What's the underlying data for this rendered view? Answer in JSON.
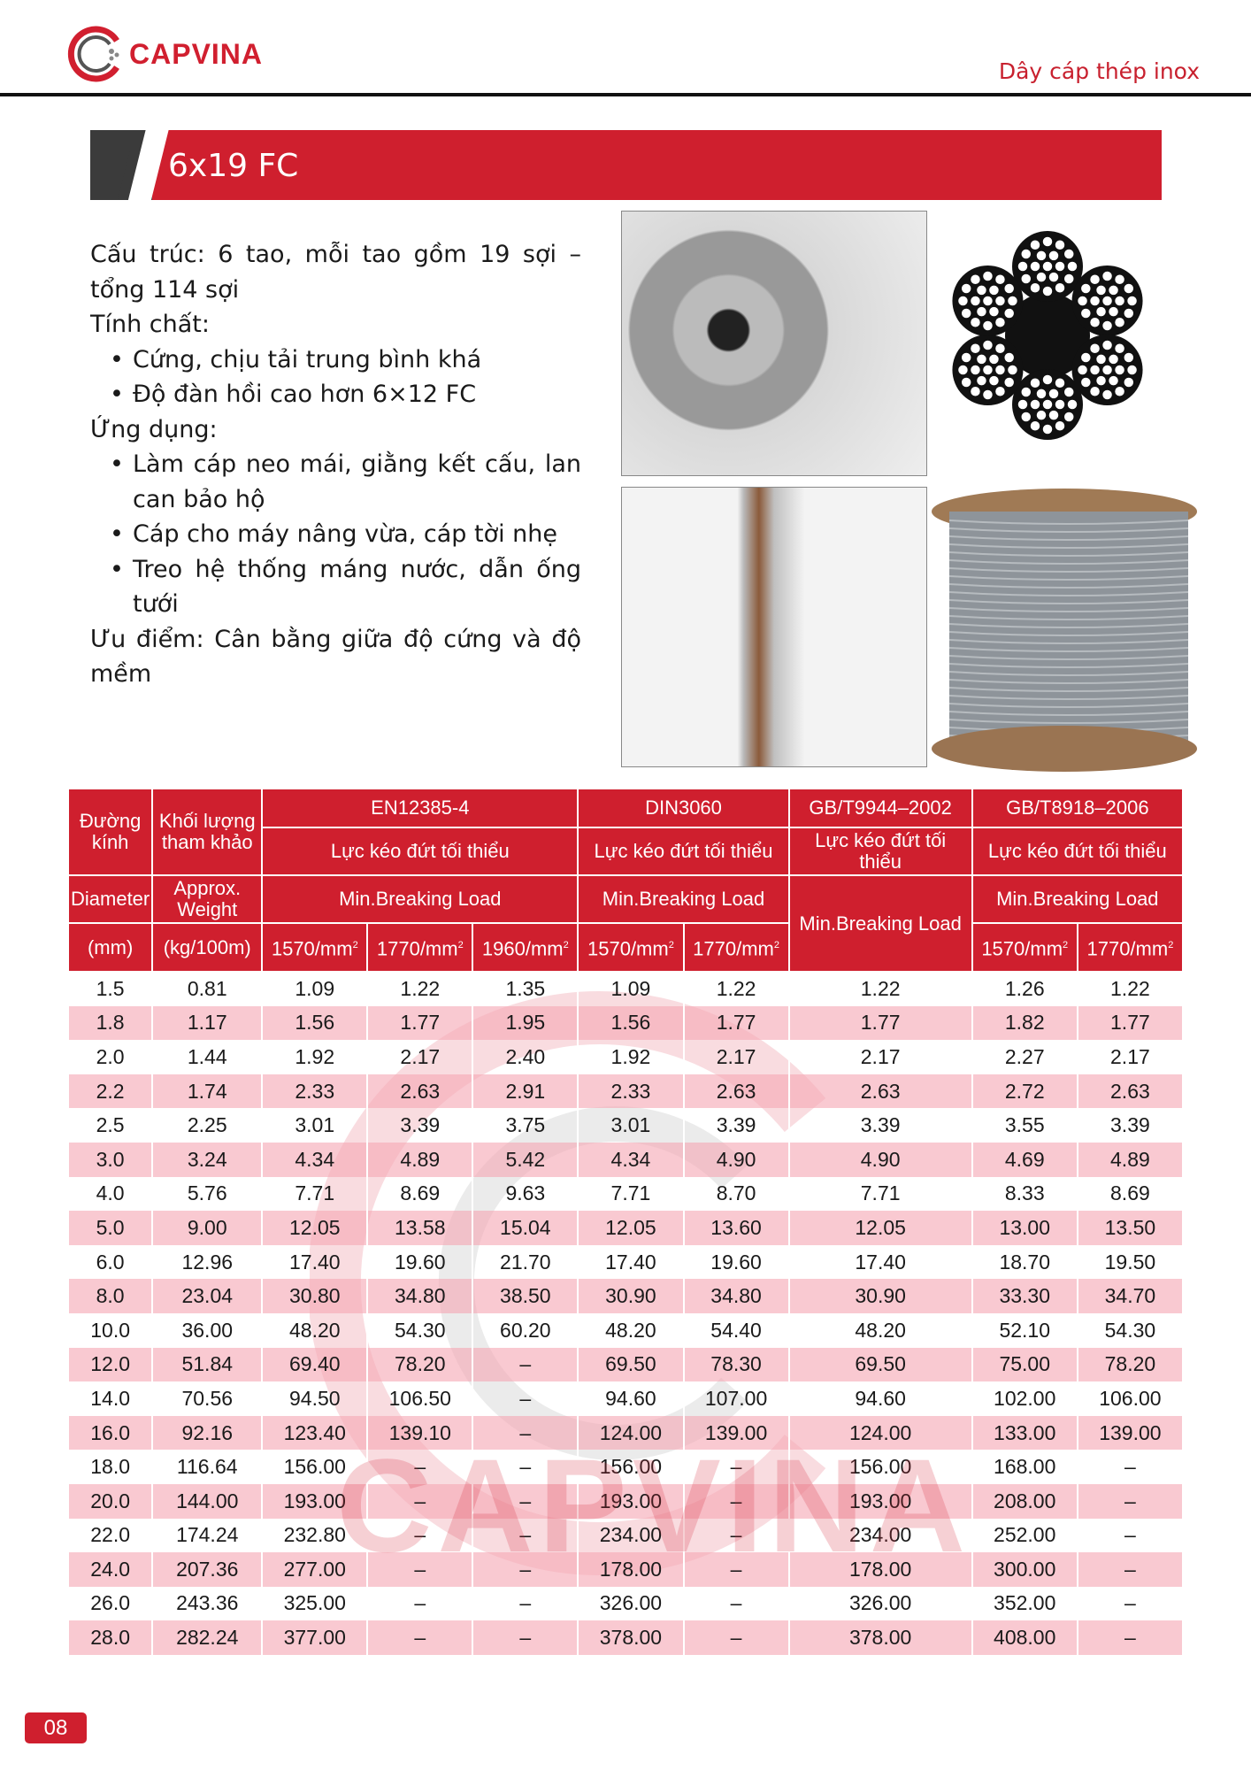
{
  "header": {
    "logo_text": "CAPVINA",
    "category": "Dây cáp thép inox"
  },
  "title": "6x19 FC",
  "description": {
    "structure": "Cấu trúc: 6 tao, mỗi tao gồm 19 sợi – tổng 114 sợi",
    "properties_label": "Tính chất:",
    "properties": [
      "Cứng, chịu tải trung bình khá",
      "Độ đàn hồi cao hơn 6×12 FC"
    ],
    "applications_label": "Ứng dụng:",
    "applications": [
      "Làm cáp neo mái, giằng kết cấu, lan can bảo hộ",
      "Cáp cho máy nâng vừa, cáp tời nhẹ",
      "Treo hệ thống máng nước, dẫn ống tưới"
    ],
    "advantage": "Ưu điểm: Cân bằng giữa độ cứng và độ mềm"
  },
  "table": {
    "h_diameter_vi": "Đường kính",
    "h_weight_vi": "Khối lượng tham khảo",
    "std1": "EN12385-4",
    "std2": "DIN3060",
    "std3": "GB/T9944–2002",
    "std4": "GB/T8918–2006",
    "mbl_vi": "Lực kéo đứt tối thiểu",
    "mbl_en": "Min.Breaking Load",
    "h_diameter_en": "Diameter",
    "h_weight_en": "Approx. Weight",
    "unit_mm": "(mm)",
    "unit_kg": "(kg/100m)",
    "g1570": "1570/mm",
    "g1770": "1770/mm",
    "g1960": "1960/mm",
    "sq": "2",
    "rows": [
      [
        "1.5",
        "0.81",
        "1.09",
        "1.22",
        "1.35",
        "1.09",
        "1.22",
        "1.22",
        "1.26",
        "1.22"
      ],
      [
        "1.8",
        "1.17",
        "1.56",
        "1.77",
        "1.95",
        "1.56",
        "1.77",
        "1.77",
        "1.82",
        "1.77"
      ],
      [
        "2.0",
        "1.44",
        "1.92",
        "2.17",
        "2.40",
        "1.92",
        "2.17",
        "2.17",
        "2.27",
        "2.17"
      ],
      [
        "2.2",
        "1.74",
        "2.33",
        "2.63",
        "2.91",
        "2.33",
        "2.63",
        "2.63",
        "2.72",
        "2.63"
      ],
      [
        "2.5",
        "2.25",
        "3.01",
        "3.39",
        "3.75",
        "3.01",
        "3.39",
        "3.39",
        "3.55",
        "3.39"
      ],
      [
        "3.0",
        "3.24",
        "4.34",
        "4.89",
        "5.42",
        "4.34",
        "4.90",
        "4.90",
        "4.69",
        "4.89"
      ],
      [
        "4.0",
        "5.76",
        "7.71",
        "8.69",
        "9.63",
        "7.71",
        "8.70",
        "7.71",
        "8.33",
        "8.69"
      ],
      [
        "5.0",
        "9.00",
        "12.05",
        "13.58",
        "15.04",
        "12.05",
        "13.60",
        "12.05",
        "13.00",
        "13.50"
      ],
      [
        "6.0",
        "12.96",
        "17.40",
        "19.60",
        "21.70",
        "17.40",
        "19.60",
        "17.40",
        "18.70",
        "19.50"
      ],
      [
        "8.0",
        "23.04",
        "30.80",
        "34.80",
        "38.50",
        "30.90",
        "34.80",
        "30.90",
        "33.30",
        "34.70"
      ],
      [
        "10.0",
        "36.00",
        "48.20",
        "54.30",
        "60.20",
        "48.20",
        "54.40",
        "48.20",
        "52.10",
        "54.30"
      ],
      [
        "12.0",
        "51.84",
        "69.40",
        "78.20",
        "–",
        "69.50",
        "78.30",
        "69.50",
        "75.00",
        "78.20"
      ],
      [
        "14.0",
        "70.56",
        "94.50",
        "106.50",
        "–",
        "94.60",
        "107.00",
        "94.60",
        "102.00",
        "106.00"
      ],
      [
        "16.0",
        "92.16",
        "123.40",
        "139.10",
        "–",
        "124.00",
        "139.00",
        "124.00",
        "133.00",
        "139.00"
      ],
      [
        "18.0",
        "116.64",
        "156.00",
        "–",
        "–",
        "156.00",
        "–",
        "156.00",
        "168.00",
        "–"
      ],
      [
        "20.0",
        "144.00",
        "193.00",
        "–",
        "–",
        "193.00",
        "–",
        "193.00",
        "208.00",
        "–"
      ],
      [
        "22.0",
        "174.24",
        "232.80",
        "–",
        "–",
        "234.00",
        "–",
        "234.00",
        "252.00",
        "–"
      ],
      [
        "24.0",
        "207.36",
        "277.00",
        "–",
        "–",
        "178.00",
        "–",
        "178.00",
        "300.00",
        "–"
      ],
      [
        "26.0",
        "243.36",
        "325.00",
        "–",
        "–",
        "326.00",
        "–",
        "326.00",
        "352.00",
        "–"
      ],
      [
        "28.0",
        "282.24",
        "377.00",
        "–",
        "–",
        "378.00",
        "–",
        "378.00",
        "408.00",
        "–"
      ]
    ]
  },
  "watermark": "CAPVINA",
  "page_number": "08",
  "colors": {
    "brand_red": "#cf1f2e",
    "row_alt": "#f8c3cb",
    "dark": "#3b3b3b"
  }
}
